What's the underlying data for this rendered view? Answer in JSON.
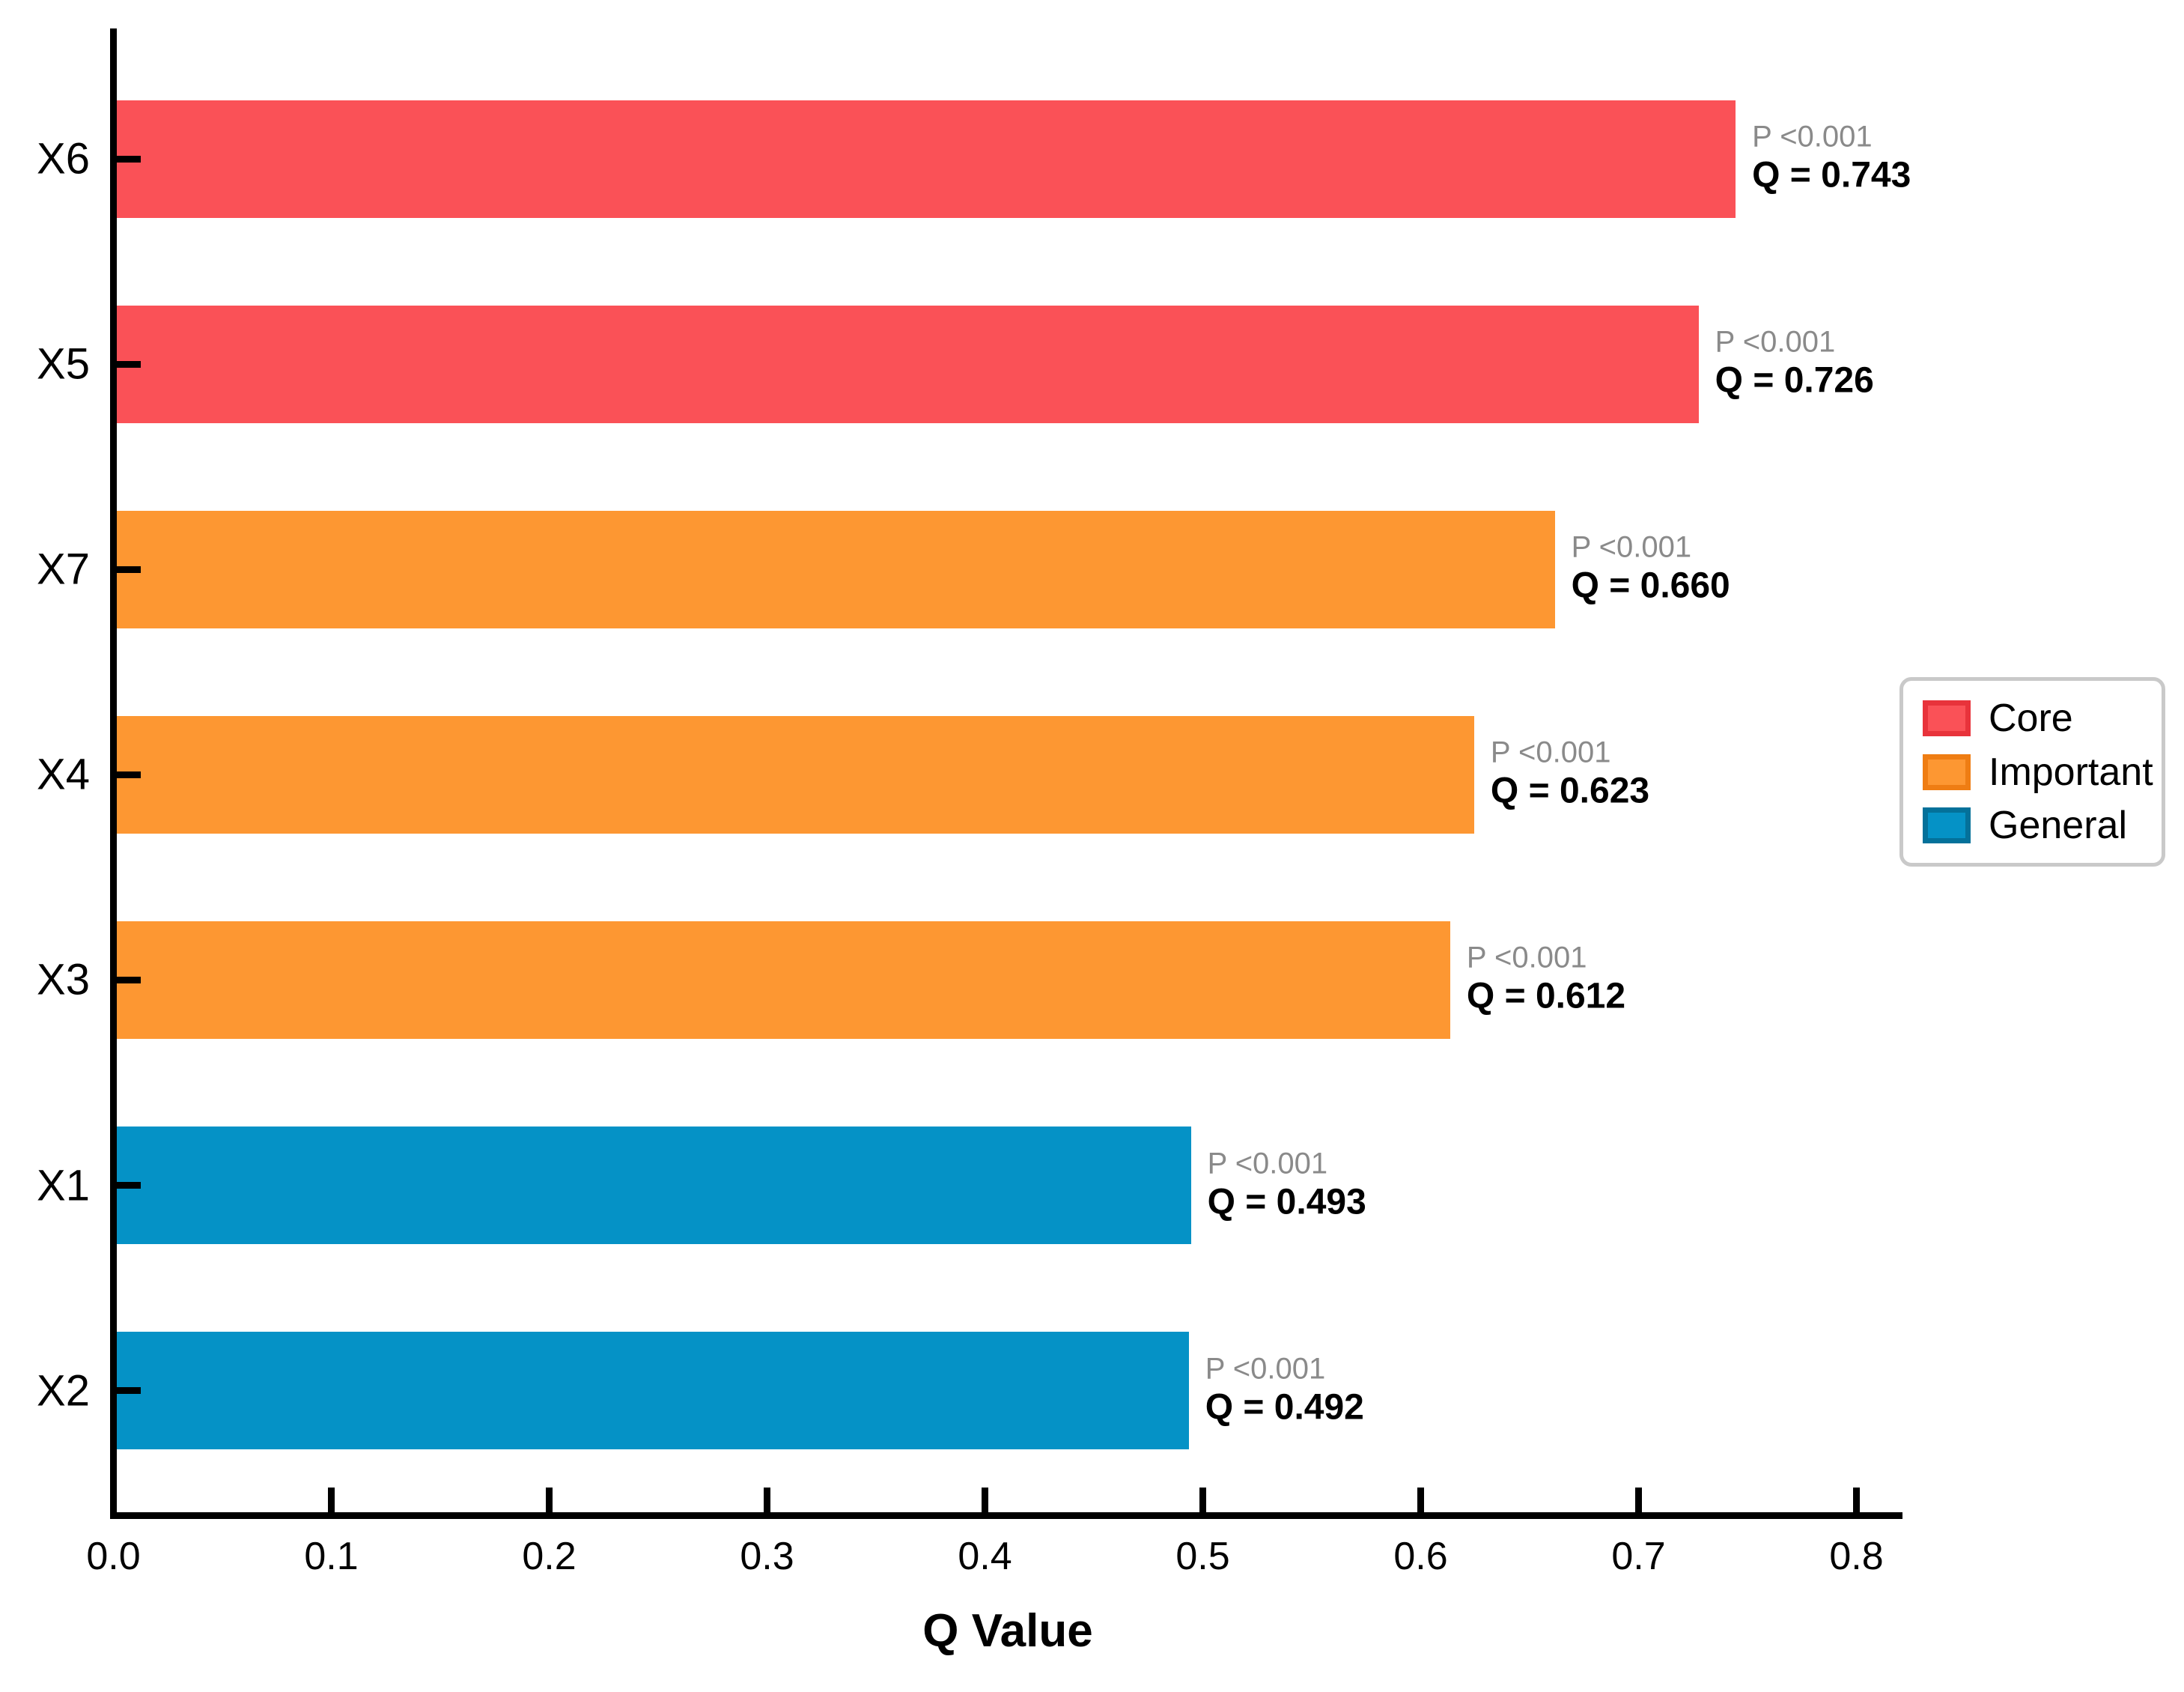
{
  "chart_data": {
    "type": "bar",
    "orientation": "horizontal",
    "title": "",
    "xlabel": "Q Value",
    "ylabel": "",
    "xlim": [
      0.0,
      0.8
    ],
    "xticks": [
      "0.0",
      "0.1",
      "0.2",
      "0.3",
      "0.4",
      "0.5",
      "0.6",
      "0.7",
      "0.8"
    ],
    "grid": false,
    "categories": [
      "X6",
      "X5",
      "X7",
      "X4",
      "X3",
      "X1",
      "X2"
    ],
    "bars": [
      {
        "category": "X6",
        "value": 0.743,
        "group": "Core",
        "p_label": "P <0.001",
        "q_label": "Q = 0.743"
      },
      {
        "category": "X5",
        "value": 0.726,
        "group": "Core",
        "p_label": "P <0.001",
        "q_label": "Q = 0.726"
      },
      {
        "category": "X7",
        "value": 0.66,
        "group": "Important",
        "p_label": "P <0.001",
        "q_label": "Q = 0.660"
      },
      {
        "category": "X4",
        "value": 0.623,
        "group": "Important",
        "p_label": "P <0.001",
        "q_label": "Q = 0.623"
      },
      {
        "category": "X3",
        "value": 0.612,
        "group": "Important",
        "p_label": "P <0.001",
        "q_label": "Q = 0.612"
      },
      {
        "category": "X1",
        "value": 0.493,
        "group": "General",
        "p_label": "P <0.001",
        "q_label": "Q = 0.493"
      },
      {
        "category": "X2",
        "value": 0.492,
        "group": "General",
        "p_label": "P <0.001",
        "q_label": "Q = 0.492"
      }
    ],
    "legend": {
      "position": "center-right",
      "entries": [
        {
          "label": "Core",
          "color": "#FA5157",
          "edge": "#E8333B"
        },
        {
          "label": "Important",
          "color": "#FD9732",
          "edge": "#EF7D13"
        },
        {
          "label": "General",
          "color": "#0592C6",
          "edge": "#04719A"
        }
      ]
    },
    "colors": {
      "annotation_p": "#8A8A8A",
      "annotation_q": "#000000",
      "axis": "#000000"
    }
  }
}
